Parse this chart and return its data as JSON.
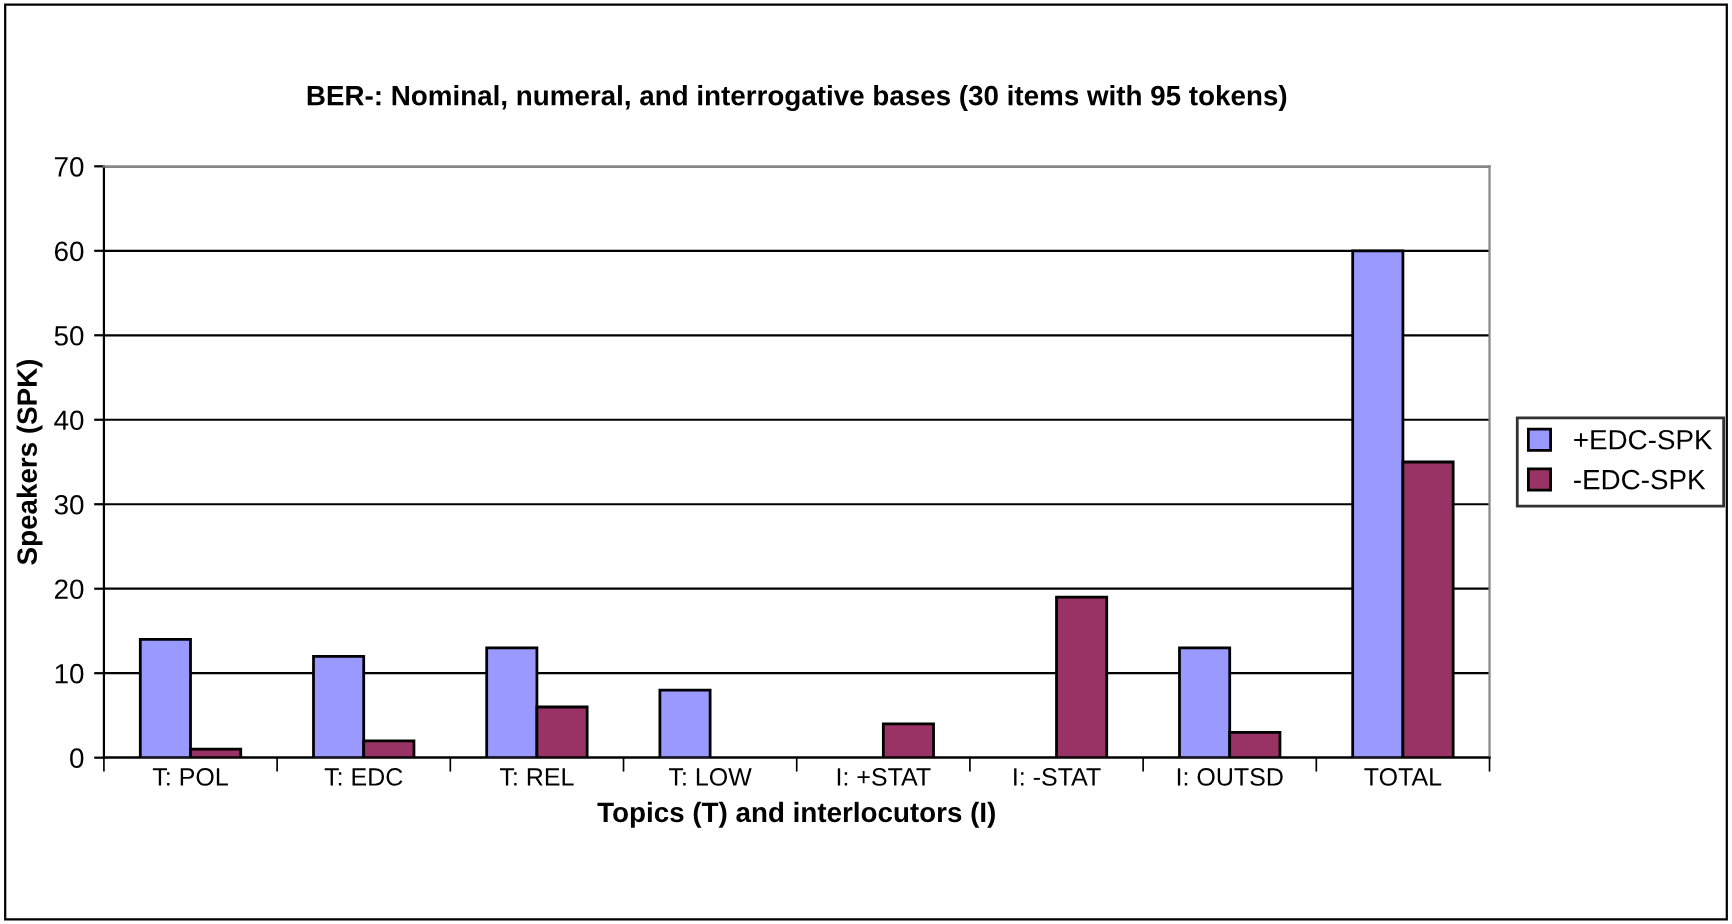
{
  "chart_data": {
    "type": "bar",
    "title": "BER-: Nominal, numeral, and interrogative bases (30 items with 95 tokens)",
    "xlabel": "Topics (T) and interlocutors (I)",
    "ylabel": "Speakers (SPK)",
    "categories": [
      "T: POL",
      "T: EDC",
      "T: REL",
      "T: LOW",
      "I: +STAT",
      "I: -STAT",
      "I: OUTSD",
      "TOTAL"
    ],
    "series": [
      {
        "name": "+EDC-SPK",
        "color": "#9999ff",
        "values": [
          14,
          12,
          13,
          8,
          0,
          0,
          13,
          60
        ]
      },
      {
        "name": "-EDC-SPK",
        "color": "#993366",
        "values": [
          1,
          2,
          6,
          0,
          4,
          19,
          3,
          35
        ]
      }
    ],
    "ylim": [
      0,
      70
    ],
    "yticks": [
      0,
      10,
      20,
      30,
      40,
      50,
      60,
      70
    ],
    "grid": "y",
    "legend": "right"
  }
}
